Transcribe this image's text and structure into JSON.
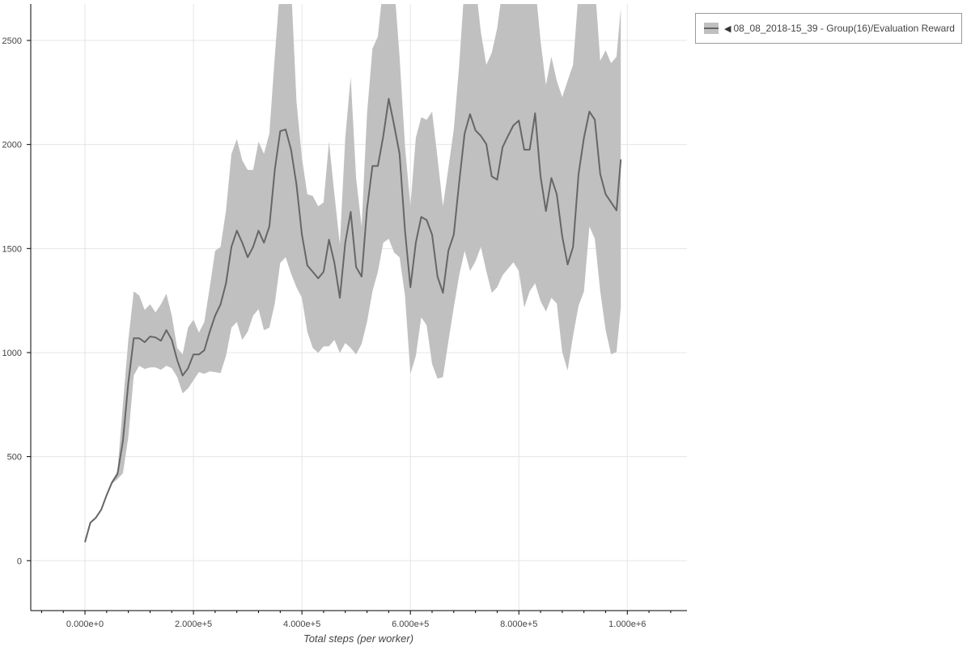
{
  "chart_data": {
    "type": "line",
    "title": "",
    "xlabel": "Total steps (per worker)",
    "ylabel": "",
    "xlim": [
      -100000,
      1110000
    ],
    "ylim": [
      -240,
      2675
    ],
    "grid": true,
    "legend_position": "top-right, outside plot",
    "x_ticks": [
      0,
      200000,
      400000,
      600000,
      800000,
      1000000
    ],
    "x_tick_labels": [
      "0.000e+0",
      "2.000e+5",
      "4.000e+5",
      "6.000e+5",
      "8.000e+5",
      "1.000e+6"
    ],
    "y_ticks": [
      0,
      500,
      1000,
      1500,
      2000,
      2500
    ],
    "y_tick_labels": [
      "0",
      "500",
      "1000",
      "1500",
      "2000",
      "2500"
    ],
    "colors": {
      "line": "#666666",
      "band": "#c0c0c0",
      "grid": "#e5e5e5"
    },
    "x": [
      0,
      10000,
      20000,
      30000,
      40000,
      50000,
      60000,
      70000,
      80000,
      90000,
      100000,
      110000,
      120000,
      130000,
      140000,
      150000,
      160000,
      170000,
      180000,
      190000,
      200000,
      210000,
      220000,
      230000,
      240000,
      250000,
      260000,
      270000,
      280000,
      290000,
      300000,
      310000,
      320000,
      330000,
      340000,
      350000,
      360000,
      370000,
      380000,
      390000,
      400000,
      410000,
      420000,
      430000,
      440000,
      450000,
      460000,
      470000,
      480000,
      490000,
      500000,
      510000,
      520000,
      530000,
      540000,
      550000,
      560000,
      570000,
      580000,
      590000,
      600000,
      610000,
      620000,
      630000,
      640000,
      650000,
      660000,
      670000,
      680000,
      690000,
      700000,
      710000,
      720000,
      730000,
      740000,
      750000,
      760000,
      770000,
      780000,
      790000,
      800000,
      810000,
      820000,
      830000,
      840000,
      850000,
      860000,
      870000,
      880000,
      890000,
      900000,
      910000,
      920000,
      930000,
      940000,
      950000,
      960000,
      970000,
      980000,
      988000
    ],
    "series": [
      {
        "name": "08_08_2018-15_39 - Group(16)/Evaluation Reward",
        "values": [
          89,
          183,
          206,
          245,
          315,
          377,
          416,
          575,
          855,
          1069,
          1069,
          1050,
          1077,
          1073,
          1057,
          1108,
          1061,
          964,
          890,
          925,
          991,
          991,
          1011,
          1100,
          1178,
          1232,
          1333,
          1508,
          1586,
          1528,
          1458,
          1508,
          1586,
          1528,
          1606,
          1878,
          2064,
          2072,
          1975,
          1808,
          1567,
          1419,
          1388,
          1357,
          1388,
          1543,
          1431,
          1263,
          1528,
          1676,
          1411,
          1365,
          1691,
          1897,
          1897,
          2041,
          2220,
          2092,
          1955,
          1586,
          1314,
          1528,
          1652,
          1637,
          1567,
          1365,
          1287,
          1489,
          1567,
          1819,
          2053,
          2146,
          2068,
          2041,
          2002,
          1847,
          1831,
          1987,
          2041,
          2092,
          2115,
          1975,
          1975,
          2150,
          1847,
          1680,
          1839,
          1761,
          1559,
          1423,
          1508,
          1858,
          2033,
          2158,
          2119,
          1858,
          1761,
          1722,
          1683,
          1928
        ],
        "upper": [
          89,
          183,
          206,
          245,
          315,
          385,
          431,
          750,
          1061,
          1294,
          1275,
          1205,
          1232,
          1193,
          1232,
          1283,
          1178,
          1022,
          991,
          1120,
          1158,
          1096,
          1147,
          1314,
          1489,
          1508,
          1683,
          1955,
          2026,
          1924,
          1878,
          1878,
          2014,
          1955,
          2053,
          2422,
          2772,
          2772,
          2772,
          2208,
          1936,
          1761,
          1753,
          1703,
          1722,
          2014,
          1761,
          1520,
          2033,
          2325,
          1839,
          1606,
          2150,
          2461,
          2519,
          2772,
          2772,
          2772,
          2422,
          1994,
          1703,
          2033,
          2131,
          2119,
          2158,
          1936,
          1703,
          1886,
          2072,
          2383,
          2772,
          2772,
          2772,
          2539,
          2383,
          2441,
          2558,
          2752,
          2772,
          2772,
          2772,
          2694,
          2733,
          2772,
          2500,
          2286,
          2422,
          2306,
          2228,
          2306,
          2383,
          2733,
          2772,
          2772,
          2772,
          2402,
          2453,
          2391,
          2422,
          2655
        ],
        "lower": [
          89,
          183,
          206,
          245,
          315,
          370,
          392,
          420,
          595,
          890,
          937,
          921,
          929,
          929,
          917,
          937,
          925,
          882,
          804,
          828,
          867,
          906,
          898,
          910,
          906,
          902,
          984,
          1120,
          1147,
          1061,
          1100,
          1178,
          1209,
          1108,
          1120,
          1236,
          1431,
          1458,
          1380,
          1314,
          1263,
          1100,
          1022,
          999,
          1030,
          1030,
          1061,
          999,
          1046,
          1022,
          991,
          1042,
          1147,
          1294,
          1388,
          1528,
          1547,
          1481,
          1458,
          1275,
          898,
          984,
          1170,
          1131,
          945,
          875,
          882,
          1053,
          1217,
          1372,
          1489,
          1392,
          1438,
          1508,
          1392,
          1287,
          1314,
          1372,
          1403,
          1434,
          1392,
          1217,
          1294,
          1333,
          1248,
          1197,
          1263,
          1236,
          1003,
          914,
          1081,
          1224,
          1294,
          1606,
          1547,
          1294,
          1108,
          991,
          1003,
          1217
        ]
      }
    ]
  },
  "legend": {
    "marker": "◀",
    "label": "08_08_2018-15_39 - Group(16)/Evaluation Reward"
  }
}
